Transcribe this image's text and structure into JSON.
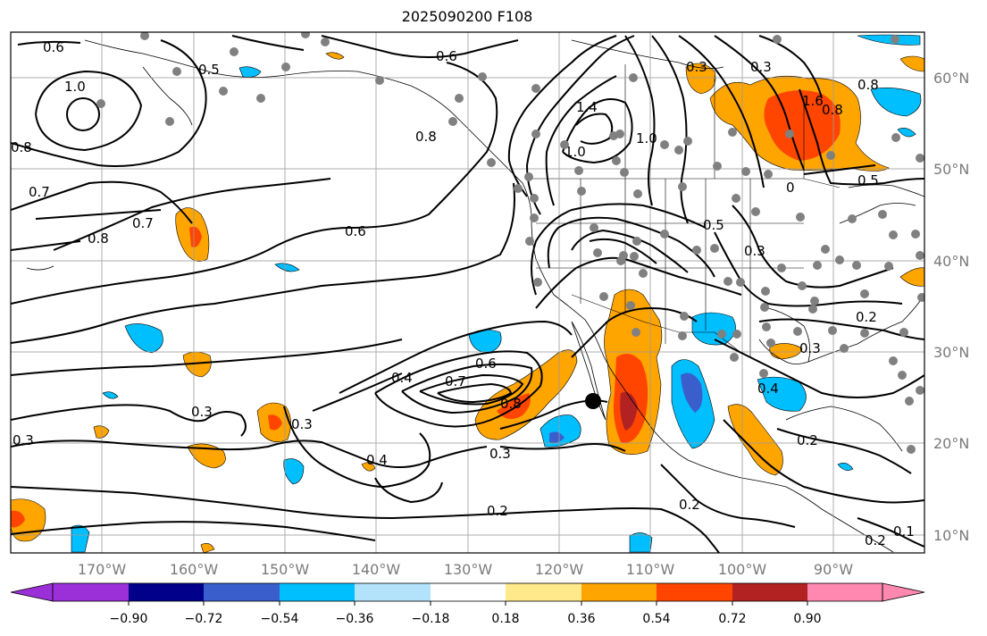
{
  "title": "2025090200 F108",
  "map": {
    "projection": "PlateCarree",
    "lon_range": [
      -180,
      -80
    ],
    "lat_range": [
      8,
      65
    ],
    "gridlines": true,
    "lon_ticks": [
      "170°W",
      "160°W",
      "150°W",
      "140°W",
      "130°W",
      "120°W",
      "110°W",
      "100°W",
      "90°W"
    ],
    "lat_ticks": [
      "60°N",
      "50°N",
      "40°N",
      "30°N",
      "20°N",
      "10°N"
    ],
    "contour_color": "#000000",
    "station_marker_color": "#808080",
    "storm_marker_color": "#000000",
    "contour_labels": [
      "0.6",
      "0.5",
      "1.0",
      "0.8",
      "0.7",
      "0.8",
      "0.7",
      "0.6",
      "0.6",
      "0.8",
      "1.4",
      "1.0",
      "0.3",
      "1.6",
      "0.8",
      "0.5",
      "0.5",
      "0.3",
      "0.2",
      "0.3",
      "0.3",
      "0.4",
      "0.7",
      "0.6",
      "0.8",
      "0.3",
      "0.4",
      "0.3",
      "0.4",
      "0.2",
      "0.2",
      "0.2",
      "0.3",
      "0.2",
      "0.1",
      "0.3",
      "1.0",
      "0.8",
      "0"
    ]
  },
  "colorbar": {
    "orientation": "horizontal",
    "extend": "both",
    "tick_labels": [
      "−0.90",
      "−0.72",
      "−0.54",
      "−0.36",
      "−0.18",
      "0.18",
      "0.36",
      "0.54",
      "0.72",
      "0.90"
    ],
    "colors": [
      "#9b30d9",
      "#00008b",
      "#3a5fcd",
      "#00bfff",
      "#b2e3fa",
      "#ffffff",
      "#ffe98a",
      "#ffa500",
      "#ff4500",
      "#b22222",
      "#ff88b0"
    ]
  }
}
